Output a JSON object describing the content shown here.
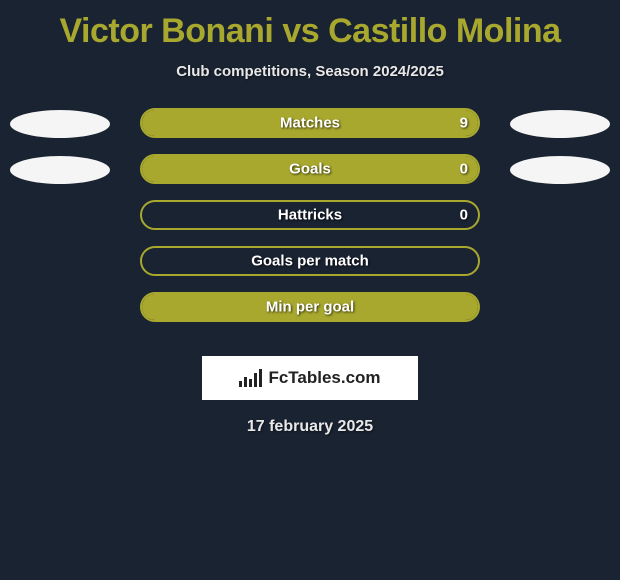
{
  "title": {
    "player1": "Victor Bonani",
    "vs": "vs",
    "player2": "Castillo Molina",
    "player1_color": "#a8a82e",
    "vs_color": "#a8a82e",
    "player2_color": "#a8a82e"
  },
  "subtitle": "Club competitions, Season 2024/2025",
  "background_color": "#1a2332",
  "chart": {
    "bar_border_color": "#a8a82e",
    "bar_fill_left_color": "#a8a82e",
    "bar_fill_right_color": "#a8a82e",
    "avatar_color": "#f5f5f5",
    "label_color": "#ffffff",
    "rows": [
      {
        "label": "Matches",
        "value_right": "9",
        "left_fill_pct": 0,
        "right_fill_pct": 100,
        "show_left_avatar": true,
        "show_right_avatar": true,
        "show_value": true
      },
      {
        "label": "Goals",
        "value_right": "0",
        "left_fill_pct": 0,
        "right_fill_pct": 100,
        "show_left_avatar": true,
        "show_right_avatar": true,
        "show_value": true
      },
      {
        "label": "Hattricks",
        "value_right": "0",
        "left_fill_pct": 0,
        "right_fill_pct": 0,
        "show_left_avatar": false,
        "show_right_avatar": false,
        "show_value": true
      },
      {
        "label": "Goals per match",
        "value_right": "",
        "left_fill_pct": 0,
        "right_fill_pct": 0,
        "show_left_avatar": false,
        "show_right_avatar": false,
        "show_value": false
      },
      {
        "label": "Min per goal",
        "value_right": "",
        "left_fill_pct": 0,
        "right_fill_pct": 100,
        "show_left_avatar": false,
        "show_right_avatar": false,
        "show_value": false
      }
    ]
  },
  "logo_text": "FcTables.com",
  "date_text": "17 february 2025"
}
